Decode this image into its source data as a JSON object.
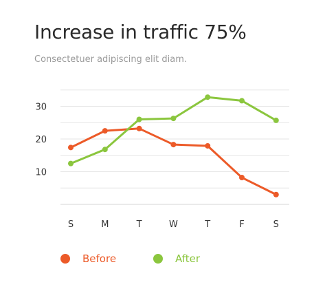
{
  "chart_data": {
    "type": "line",
    "title": "Increase in traffic 75%",
    "subtitle": "Consectetuer adipiscing elit diam.",
    "categories": [
      "S",
      "M",
      "T",
      "W",
      "T",
      "F",
      "S"
    ],
    "y_ticks": [
      10,
      20,
      30
    ],
    "ylim": [
      0,
      35
    ],
    "grid": true,
    "legend_position": "bottom-left",
    "series": [
      {
        "name": "Before",
        "color": "#ec5a28",
        "values": [
          17.4,
          22.5,
          23.2,
          18.3,
          17.9,
          8.2,
          3.0
        ]
      },
      {
        "name": "After",
        "color": "#8bc63e",
        "values": [
          12.5,
          16.8,
          26.0,
          26.3,
          32.8,
          31.7,
          25.7
        ]
      }
    ]
  }
}
